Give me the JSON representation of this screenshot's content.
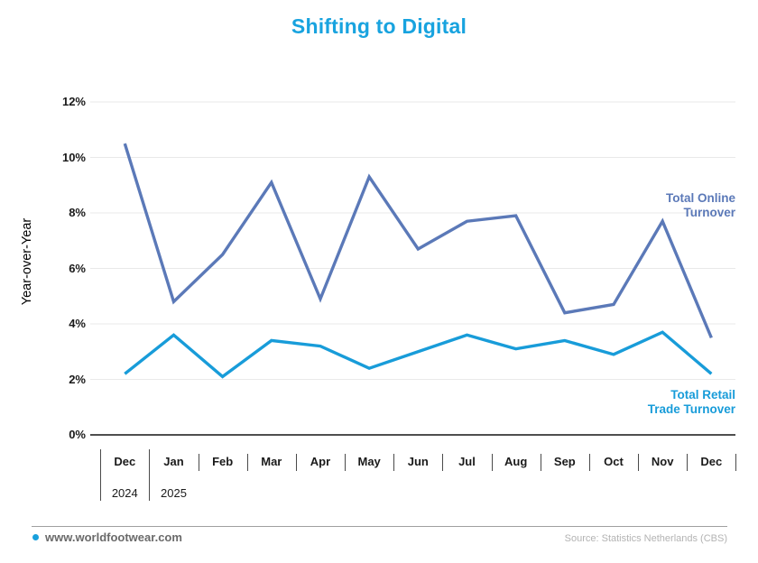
{
  "title": "Shifting to Digital",
  "colors": {
    "title": "#18A3DF",
    "online_line": "#5B79B8",
    "retail_line": "#189CD9",
    "grid": "#E9E9E9",
    "zero_axis": "#4F4F4F",
    "footer_divider": "#A0A0A0",
    "footer_dot": "#18A0DC",
    "footer_site_text": "#6A6A6A",
    "footer_source_text": "#B3B3B3"
  },
  "series_labels": {
    "online": "Total Online\nTurnover",
    "retail": "Total Retail\nTrade Turnover"
  },
  "footer": {
    "site": "www.worldfootwear.com",
    "source": "Source: Statistics Netherlands (CBS)"
  },
  "chart_data": {
    "type": "line",
    "title": "Shifting to Digital",
    "xlabel": "",
    "ylabel": "Year-over-Year",
    "ylim": [
      0,
      12
    ],
    "y_ticks": [
      0,
      2,
      4,
      6,
      8,
      10,
      12
    ],
    "y_tick_labels": [
      "0%",
      "2%",
      "4%",
      "6%",
      "8%",
      "10%",
      "12%"
    ],
    "grid": true,
    "legend_position": "inline-right",
    "categories": [
      "Dec",
      "Jan",
      "Feb",
      "Mar",
      "Apr",
      "May",
      "Jun",
      "Jul",
      "Aug",
      "Sep",
      "Oct",
      "Nov",
      "Dec"
    ],
    "year_labels": [
      {
        "text": "2024",
        "month_index": 0
      },
      {
        "text": "2025",
        "month_index": 1
      }
    ],
    "series": [
      {
        "name": "Total Online Turnover",
        "color": "#5B79B8",
        "values": [
          10.5,
          4.8,
          6.5,
          9.1,
          4.9,
          9.3,
          6.7,
          7.7,
          7.9,
          4.4,
          4.7,
          7.7,
          3.5
        ]
      },
      {
        "name": "Total Retail Trade Turnover",
        "color": "#189CD9",
        "values": [
          2.2,
          3.6,
          2.1,
          3.4,
          3.2,
          2.4,
          3.0,
          3.6,
          3.1,
          3.4,
          2.9,
          3.7,
          2.2
        ]
      }
    ]
  }
}
